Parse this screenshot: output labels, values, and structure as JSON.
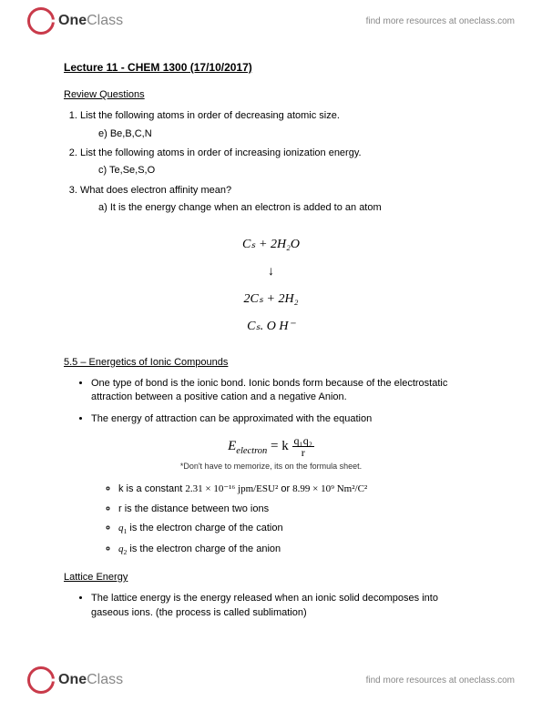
{
  "logo": {
    "brand_one": "One",
    "brand_class": "Class"
  },
  "header_link": "find more resources at oneclass.com",
  "footer_link": "find more resources at oneclass.com",
  "title": "Lecture 11 - CHEM 1300 (17/10/2017)",
  "review_heading": "Review Questions",
  "questions": {
    "q1": "List the following atoms in order of decreasing atomic size.",
    "q1_sub": "e) Be,B,C,N",
    "q2": "List the following atoms in order of increasing ionization energy.",
    "q2_sub": "c) Te,Se,S,O",
    "q3": "What does electron affinity mean?",
    "q3_sub": "a)  It is the energy change when an electron is added to an atom"
  },
  "equations": {
    "line1": "Cₛ + 2H₂O",
    "line2": "↓",
    "line3": "2Cₛ + 2H₂",
    "line4": "Cₛ. O H⁻"
  },
  "section55": "5.5 – Energetics of Ionic Compounds",
  "bullets55": {
    "b1": "One type of bond is the ionic bond.  Ionic bonds form because of the electrostatic attraction between a positive cation and a negative Anion.",
    "b2": "The energy of attraction can be approximated with the equation"
  },
  "main_formula": {
    "lhs": "E",
    "lhs_sub": "electron",
    "eq": " = k",
    "num": "q₁q₂",
    "den": "r"
  },
  "note": "*Don't have to memorize, its on the formula sheet.",
  "defs": {
    "d1_pre": "k is a constant  ",
    "d1_val1": "2.31 × 10⁻¹⁶ jpm/ESU²",
    "d1_or": "   or  ",
    "d1_val2": "8.99 × 10⁹ Nm²/C²",
    "d2": "r is the distance between two ions",
    "d3_pre": "q",
    "d3_sub": "1",
    "d3_post": " is the electron charge of the cation",
    "d4_pre": "q",
    "d4_sub": "2",
    "d4_post": " is the electron charge of the anion"
  },
  "lattice_heading": "Lattice Energy",
  "lattice_bullet": "The lattice energy is the energy released when an ionic solid decomposes into gaseous ions.  (the process is called sublimation)"
}
